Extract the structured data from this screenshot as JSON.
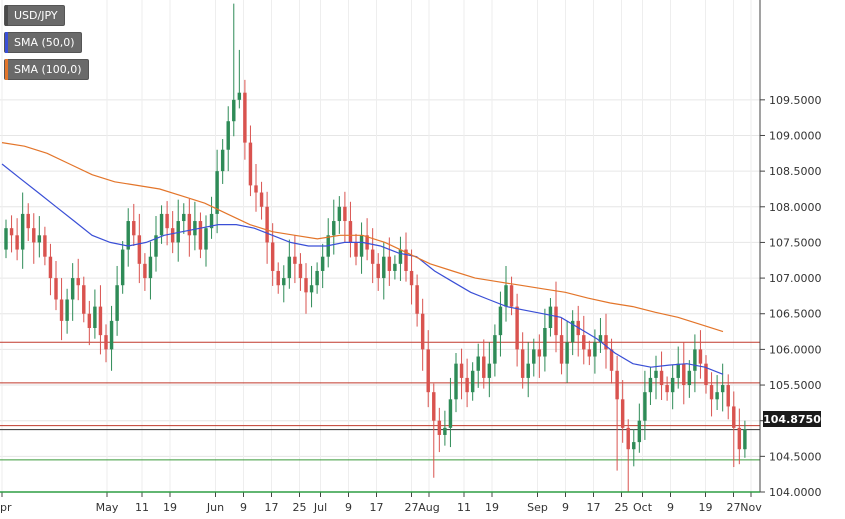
{
  "chart_data": {
    "type": "candlestick",
    "symbol": "USD/JPY",
    "indicators": [
      {
        "name": "SMA (50,0)",
        "color": "#3a4fd6"
      },
      {
        "name": "SMA (100,0)",
        "color": "#e3752a"
      }
    ],
    "current_price": "104.8750",
    "y_axis": {
      "ylim": [
        104.0,
        110.9
      ],
      "ticks": [
        "104.0000",
        "104.5000",
        "105.0000",
        "105.5000",
        "106.0000",
        "106.5000",
        "107.0000",
        "107.5000",
        "108.0000",
        "108.5000",
        "109.0000",
        "109.5000"
      ]
    },
    "x_axis": {
      "ticks": [
        {
          "label": "Apr",
          "d": 0
        },
        {
          "label": "May",
          "d": 30
        },
        {
          "label": "11",
          "d": 40
        },
        {
          "label": "19",
          "d": 48
        },
        {
          "label": "Jun",
          "d": 61
        },
        {
          "label": "9",
          "d": 69
        },
        {
          "label": "17",
          "d": 77
        },
        {
          "label": "25",
          "d": 85
        },
        {
          "label": "Jul",
          "d": 91
        },
        {
          "label": "9",
          "d": 99
        },
        {
          "label": "17",
          "d": 107
        },
        {
          "label": "27",
          "d": 117
        },
        {
          "label": "Aug",
          "d": 122
        },
        {
          "label": "11",
          "d": 132
        },
        {
          "label": "19",
          "d": 140
        },
        {
          "label": "Sep",
          "d": 153
        },
        {
          "label": "9",
          "d": 161
        },
        {
          "label": "17",
          "d": 169
        },
        {
          "label": "25",
          "d": 177
        },
        {
          "label": "Oct",
          "d": 183
        },
        {
          "label": "9",
          "d": 191
        },
        {
          "label": "19",
          "d": 201
        },
        {
          "label": "27",
          "d": 209
        },
        {
          "label": "Nov",
          "d": 214
        }
      ]
    },
    "horizontal_lines": [
      {
        "value": 106.1,
        "color": "#c0392b"
      },
      {
        "value": 105.53,
        "color": "#c0392b"
      },
      {
        "value": 104.93,
        "color": "#c0392b"
      },
      {
        "value": 104.45,
        "color": "#3a9a3a"
      }
    ],
    "candles_close": [
      107.7,
      107.6,
      107.4,
      107.9,
      107.7,
      107.5,
      107.6,
      107.3,
      107.0,
      106.7,
      106.4,
      106.7,
      107.0,
      106.9,
      106.5,
      106.3,
      106.6,
      106.2,
      106.0,
      106.4,
      106.9,
      107.4,
      107.8,
      107.6,
      107.2,
      107.0,
      107.3,
      107.6,
      107.9,
      107.7,
      107.5,
      107.8,
      107.9,
      107.6,
      107.8,
      107.4,
      107.7,
      107.9,
      108.5,
      108.8,
      109.2,
      109.5,
      109.6,
      108.9,
      108.3,
      108.2,
      108.0,
      107.5,
      107.1,
      106.9,
      107.0,
      107.3,
      107.2,
      107.0,
      106.8,
      106.9,
      107.1,
      107.3,
      107.6,
      107.8,
      108.0,
      107.8,
      107.5,
      107.3,
      107.6,
      107.4,
      107.2,
      107.0,
      107.3,
      107.1,
      107.2,
      107.4,
      107.1,
      106.9,
      106.5,
      106.0,
      105.4,
      105.0,
      104.8,
      104.9,
      105.3,
      105.8,
      105.6,
      105.4,
      105.7,
      105.9,
      105.6,
      105.8,
      106.2,
      106.6,
      106.9,
      106.6,
      106.0,
      105.6,
      105.8,
      106.0,
      105.9,
      106.3,
      106.6,
      106.2,
      105.8,
      106.1,
      106.4,
      106.2,
      106.0,
      105.9,
      106.1,
      106.2,
      106.0,
      105.7,
      105.3,
      104.9,
      104.6,
      104.7,
      105.0,
      105.4,
      105.6,
      105.7,
      105.5,
      105.4,
      105.6,
      105.8,
      105.5,
      105.7,
      106.0,
      105.8,
      105.5,
      105.3,
      105.4,
      105.5,
      105.2,
      104.9,
      104.6,
      104.88
    ],
    "sma50": [
      108.6,
      108.4,
      108.2,
      108.0,
      107.8,
      107.6,
      107.5,
      107.45,
      107.5,
      107.6,
      107.65,
      107.7,
      107.75,
      107.75,
      107.7,
      107.6,
      107.5,
      107.45,
      107.45,
      107.5,
      107.5,
      107.45,
      107.35,
      107.3,
      107.1,
      106.95,
      106.8,
      106.7,
      106.6,
      106.55,
      106.5,
      106.45,
      106.3,
      106.15,
      105.95,
      105.8,
      105.75,
      105.78,
      105.8,
      105.75,
      105.65
    ],
    "sma100": [
      108.9,
      108.85,
      108.75,
      108.6,
      108.45,
      108.35,
      108.3,
      108.25,
      108.15,
      108.05,
      107.9,
      107.75,
      107.65,
      107.6,
      107.55,
      107.6,
      107.6,
      107.5,
      107.35,
      107.2,
      107.1,
      107.0,
      106.95,
      106.9,
      106.85,
      106.8,
      106.72,
      106.65,
      106.6,
      106.52,
      106.45,
      106.35,
      106.25
    ]
  },
  "legend": {
    "symbol_label": "USD/JPY",
    "sma50_label": "SMA (50,0)",
    "sma100_label": "SMA (100,0)"
  }
}
